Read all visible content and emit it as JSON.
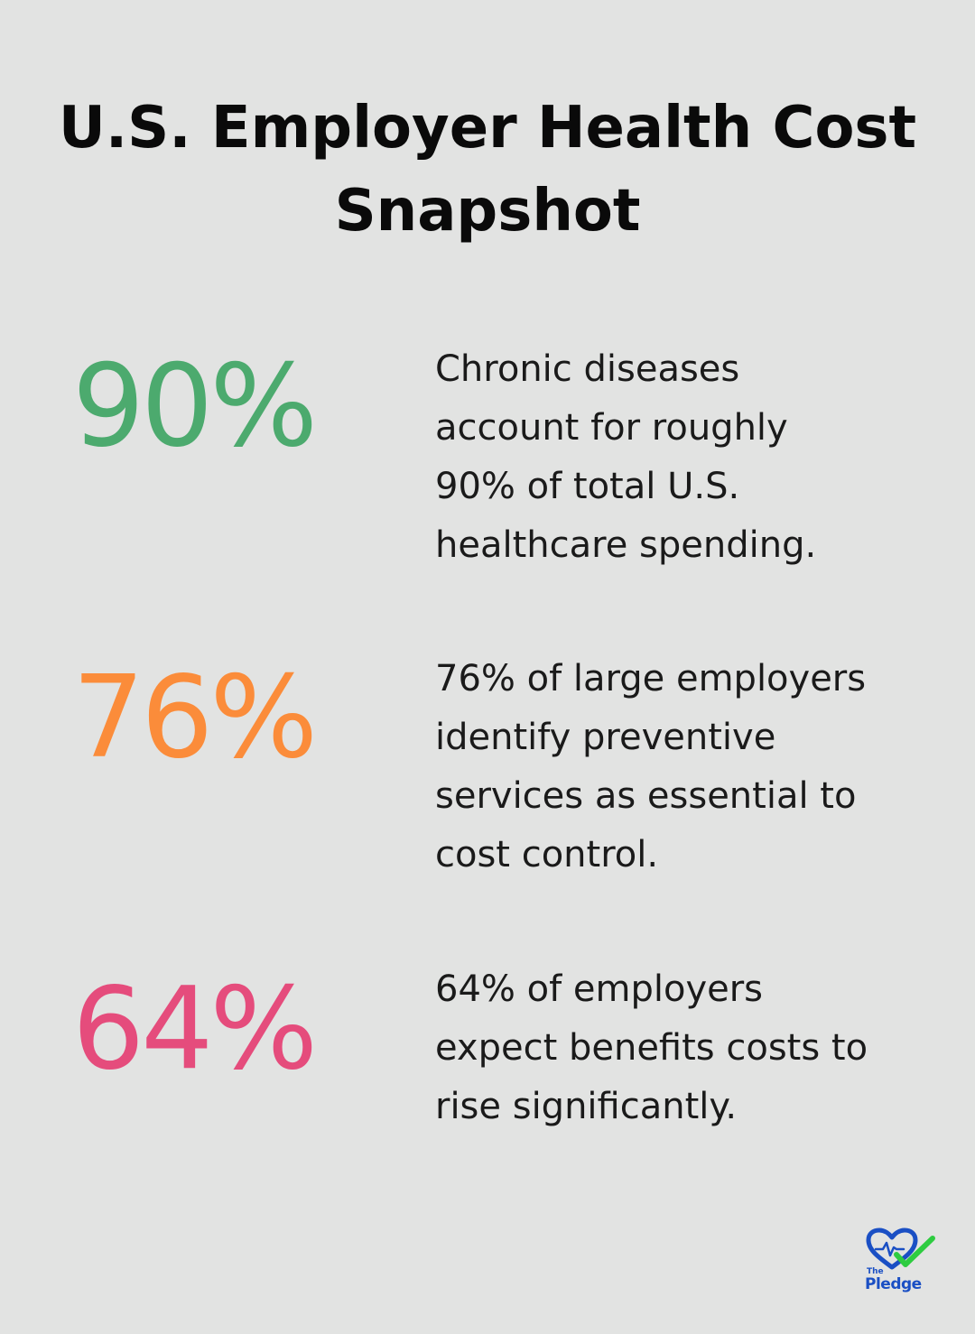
{
  "title": {
    "line1": "U.S. Employer Health Cost",
    "line2": "Snapshot"
  },
  "stats": [
    {
      "value": "90%",
      "color": "#4caa6e",
      "lines": [
        "Chronic diseases",
        "account for roughly",
        "90% of total U.S.",
        "healthcare spending."
      ]
    },
    {
      "value": "76%",
      "color": "#fb8c3a",
      "lines": [
        "76% of large employers",
        "identify preventive",
        "services as essential to",
        "cost control."
      ]
    },
    {
      "value": "64%",
      "color": "#e54c7c",
      "lines": [
        "64% of employers",
        "expect benefits costs to",
        "rise significantly."
      ]
    }
  ],
  "logo": {
    "icon": "heart-check-icon",
    "small_text": "The",
    "name": "Pledge",
    "colors": {
      "heart": "#1a4fc4",
      "check": "#2ecc40"
    }
  }
}
